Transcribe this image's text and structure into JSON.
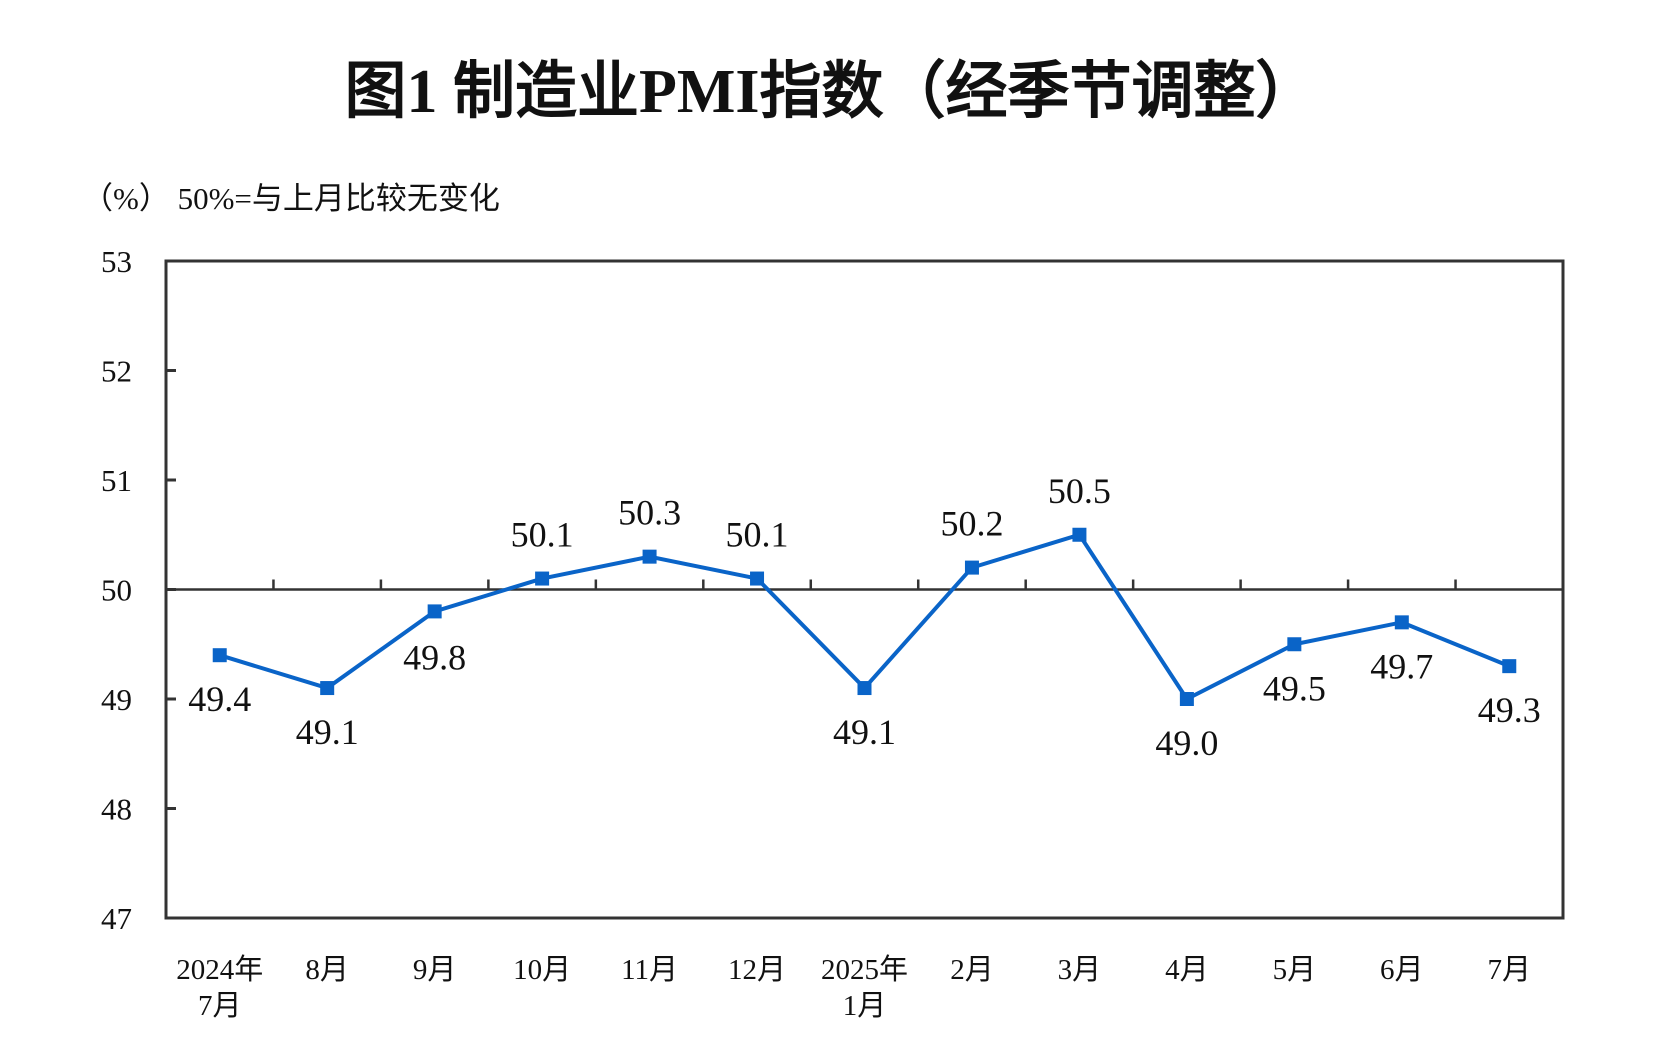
{
  "chart_data": {
    "type": "line",
    "title": "图1  制造业PMI指数（经季节调整）",
    "ylabel": "（%） 50%=与上月比较无变化",
    "categories": [
      [
        "2024年",
        "7月"
      ],
      [
        "8月"
      ],
      [
        "9月"
      ],
      [
        "10月"
      ],
      [
        "11月"
      ],
      [
        "12月"
      ],
      [
        "2025年",
        "1月"
      ],
      [
        "2月"
      ],
      [
        "3月"
      ],
      [
        "4月"
      ],
      [
        "5月"
      ],
      [
        "6月"
      ],
      [
        "7月"
      ]
    ],
    "values": [
      49.4,
      49.1,
      49.8,
      50.1,
      50.3,
      50.1,
      49.1,
      50.2,
      50.5,
      49.0,
      49.5,
      49.7,
      49.3
    ],
    "value_labels": [
      "49.4",
      "49.1",
      "49.8",
      "50.1",
      "50.3",
      "50.1",
      "49.1",
      "50.2",
      "50.5",
      "49.0",
      "49.5",
      "49.7",
      "49.3"
    ],
    "ylim": [
      47,
      53
    ],
    "yticks": [
      "47",
      "48",
      "49",
      "50",
      "51",
      "52",
      "53"
    ],
    "reference_line": 50,
    "grid": false,
    "marker": "square",
    "color": "#0a64c8"
  }
}
